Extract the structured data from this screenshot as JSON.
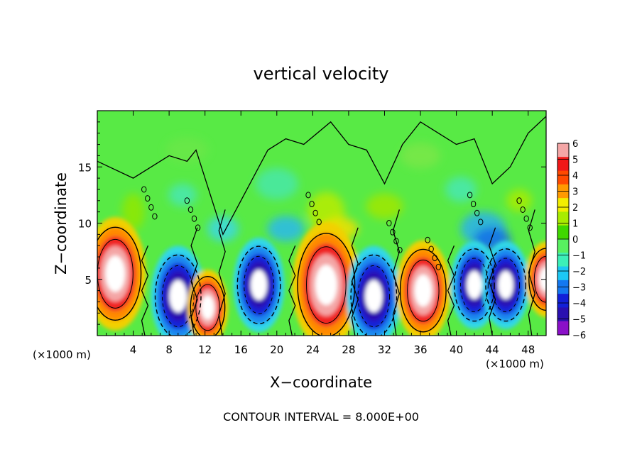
{
  "chart_data": {
    "type": "heatmap",
    "title": "vertical velocity",
    "xlabel": "X−coordinate",
    "ylabel": "Z−coordinate",
    "x_unit_left": "(×1000 m)",
    "x_unit_right": "(×1000 m)",
    "footer": "CONTOUR INTERVAL = 8.000E+00",
    "xlim": [
      0,
      50
    ],
    "ylim": [
      0,
      20
    ],
    "x_ticks": [
      4,
      8,
      12,
      16,
      20,
      24,
      28,
      32,
      36,
      40,
      44,
      48
    ],
    "x_tick_labels": [
      "4",
      "8",
      "12",
      "16",
      "20",
      "24",
      "28",
      "32",
      "36",
      "40",
      "44",
      "48"
    ],
    "y_ticks": [
      5,
      10,
      15
    ],
    "y_tick_labels": [
      "5",
      "10",
      "15"
    ],
    "colorbar": {
      "labels": [
        "6",
        "5",
        "4",
        "3",
        "2",
        "1",
        "0",
        "−1",
        "−2",
        "−3",
        "−4",
        "−5",
        "−6"
      ],
      "colors": [
        "#f4a6a6",
        "#f01818",
        "#ff4a00",
        "#ff9a00",
        "#f2ee00",
        "#a8ec00",
        "#3fd800",
        "#58f060",
        "#3cf0b8",
        "#1cc8f4",
        "#1478f0",
        "#1220d8",
        "#2a10b0",
        "#8a10c8"
      ]
    },
    "cells": [
      {
        "x": 2.0,
        "z": 5.5,
        "sign": "updraft",
        "peak": 18
      },
      {
        "x": 9.0,
        "z": 3.5,
        "sign": "downdraft",
        "peak": -16
      },
      {
        "x": 12.3,
        "z": 2.5,
        "sign": "updraft",
        "peak": 12
      },
      {
        "x": 18.0,
        "z": 4.5,
        "sign": "downdraft",
        "peak": -15
      },
      {
        "x": 25.5,
        "z": 4.5,
        "sign": "updraft",
        "peak": 20
      },
      {
        "x": 30.8,
        "z": 3.5,
        "sign": "downdraft",
        "peak": -16
      },
      {
        "x": 36.3,
        "z": 4.0,
        "sign": "updraft",
        "peak": 16
      },
      {
        "x": 42.0,
        "z": 4.5,
        "sign": "downdraft",
        "peak": -14
      },
      {
        "x": 45.5,
        "z": 4.5,
        "sign": "downdraft",
        "peak": -14
      },
      {
        "x": 50.0,
        "z": 5.0,
        "sign": "updraft",
        "peak": 12
      }
    ]
  }
}
